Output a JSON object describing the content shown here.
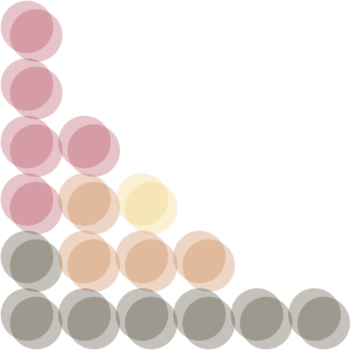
{
  "colors": {
    "background": "#ffffff",
    "red": "#b24c5a",
    "tan": "#c78250",
    "gray": "#4e4533",
    "yellow": "#f0d27a"
  },
  "grid": {
    "columns": 6,
    "rows": 6,
    "circle_pairs": [
      {
        "col": 0,
        "row": 0,
        "color": "red"
      },
      {
        "col": 0,
        "row": 1,
        "color": "red"
      },
      {
        "col": 0,
        "row": 2,
        "color": "red"
      },
      {
        "col": 1,
        "row": 2,
        "color": "red"
      },
      {
        "col": 0,
        "row": 3,
        "color": "red"
      },
      {
        "col": 1,
        "row": 3,
        "color": "tan"
      },
      {
        "col": 2,
        "row": 3,
        "color": "yellow"
      },
      {
        "col": 0,
        "row": 4,
        "color": "gray"
      },
      {
        "col": 1,
        "row": 4,
        "color": "tan"
      },
      {
        "col": 2,
        "row": 4,
        "color": "tan"
      },
      {
        "col": 3,
        "row": 4,
        "color": "tan"
      },
      {
        "col": 0,
        "row": 5,
        "color": "gray"
      },
      {
        "col": 1,
        "row": 5,
        "color": "gray"
      },
      {
        "col": 2,
        "row": 5,
        "color": "gray"
      },
      {
        "col": 3,
        "row": 5,
        "color": "gray"
      },
      {
        "col": 4,
        "row": 5,
        "color": "gray"
      },
      {
        "col": 5,
        "row": 5,
        "color": "gray"
      }
    ]
  }
}
